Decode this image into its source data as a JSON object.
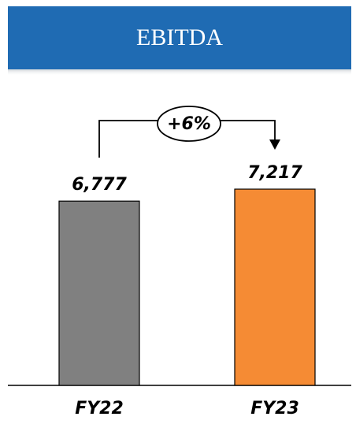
{
  "chart_data": {
    "type": "bar",
    "title": "EBITDA",
    "categories": [
      "FY22",
      "FY23"
    ],
    "values": [
      6777,
      7217
    ],
    "value_labels": [
      "6,777",
      "7,217"
    ],
    "colors": [
      "#808080",
      "#f58b34"
    ],
    "annotation": "+6%"
  }
}
